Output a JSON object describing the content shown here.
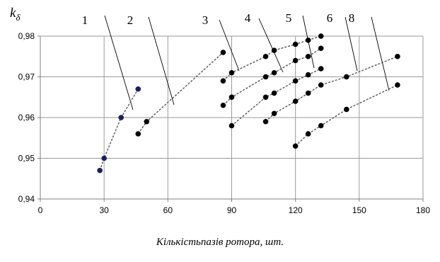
{
  "chart_data": {
    "type": "line",
    "title": "",
    "ylabel": "k",
    "ylabel_sub": "δ",
    "xlabel": "Кількістьпазів ротора, шт.",
    "xlim": [
      0,
      180
    ],
    "ylim": [
      0.94,
      0.98
    ],
    "x_ticks": [
      0,
      30,
      60,
      90,
      120,
      150,
      180
    ],
    "x_tick_labels": [
      "0",
      "30",
      "60",
      "90",
      "120",
      "150",
      "180"
    ],
    "y_ticks": [
      0.94,
      0.95,
      0.96,
      0.97,
      0.98
    ],
    "y_tick_labels": [
      "0,94",
      "0,95",
      "0,96",
      "0,97",
      "0,98"
    ],
    "grid": true,
    "legend": "none",
    "series": [
      {
        "name": "1",
        "color": "#1a1f5e",
        "points": [
          [
            28,
            0.947
          ],
          [
            30,
            0.95
          ],
          [
            38,
            0.96
          ],
          [
            46,
            0.967
          ]
        ]
      },
      {
        "name": "2",
        "color": "#000000",
        "points": [
          [
            46,
            0.956
          ],
          [
            50,
            0.959
          ],
          [
            86,
            0.976
          ]
        ]
      },
      {
        "name": "3",
        "color": "#000000",
        "points": [
          [
            86,
            0.969
          ],
          [
            90,
            0.971
          ],
          [
            106,
            0.975
          ],
          [
            110,
            0.9765
          ],
          [
            120,
            0.978
          ],
          [
            126,
            0.979
          ],
          [
            132,
            0.98
          ]
        ]
      },
      {
        "name": "4",
        "color": "#000000",
        "points": [
          [
            86,
            0.963
          ],
          [
            90,
            0.965
          ],
          [
            106,
            0.97
          ],
          [
            110,
            0.971
          ],
          [
            120,
            0.974
          ],
          [
            126,
            0.975
          ],
          [
            132,
            0.977
          ]
        ]
      },
      {
        "name": "5",
        "color": "#000000",
        "points": [
          [
            90,
            0.958
          ],
          [
            106,
            0.965
          ],
          [
            110,
            0.966
          ],
          [
            120,
            0.969
          ],
          [
            126,
            0.9705
          ],
          [
            132,
            0.972
          ]
        ]
      },
      {
        "name": "6",
        "color": "#000000",
        "points": [
          [
            106,
            0.959
          ],
          [
            110,
            0.961
          ],
          [
            120,
            0.964
          ],
          [
            126,
            0.966
          ],
          [
            132,
            0.968
          ],
          [
            144,
            0.97
          ],
          [
            168,
            0.975
          ]
        ]
      },
      {
        "name": "8",
        "color": "#000000",
        "points": [
          [
            120,
            0.953
          ],
          [
            126,
            0.956
          ],
          [
            132,
            0.958
          ],
          [
            144,
            0.962
          ],
          [
            168,
            0.968
          ]
        ]
      }
    ],
    "colors": {
      "grid": "#9a9a9a",
      "axis": "#808080",
      "line": "#555555"
    }
  }
}
